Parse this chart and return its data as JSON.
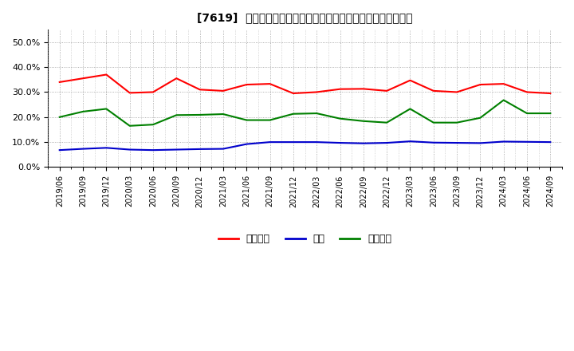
{
  "title": "[7619]  売上債権、在庫、買入債務の総資産に対する比率の推移",
  "x_labels": [
    "2019/06",
    "2019/09",
    "2019/12",
    "2020/03",
    "2020/06",
    "2020/09",
    "2020/12",
    "2021/03",
    "2021/06",
    "2021/09",
    "2021/12",
    "2022/03",
    "2022/06",
    "2022/09",
    "2022/12",
    "2023/03",
    "2023/06",
    "2023/09",
    "2023/12",
    "2024/03",
    "2024/06",
    "2024/09"
  ],
  "urikenken": [
    0.34,
    0.355,
    0.37,
    0.297,
    0.3,
    0.355,
    0.31,
    0.305,
    0.33,
    0.333,
    0.295,
    0.3,
    0.312,
    0.313,
    0.305,
    0.347,
    0.305,
    0.3,
    0.33,
    0.333,
    0.3,
    0.295
  ],
  "zaiko": [
    0.068,
    0.073,
    0.077,
    0.07,
    0.068,
    0.07,
    0.072,
    0.073,
    0.092,
    0.1,
    0.1,
    0.1,
    0.097,
    0.095,
    0.097,
    0.103,
    0.098,
    0.097,
    0.096,
    0.102,
    0.101,
    0.1
  ],
  "kaiire": [
    0.2,
    0.222,
    0.233,
    0.165,
    0.17,
    0.208,
    0.209,
    0.212,
    0.188,
    0.188,
    0.213,
    0.215,
    0.194,
    0.184,
    0.178,
    0.233,
    0.178,
    0.178,
    0.197,
    0.268,
    0.215,
    0.215
  ],
  "legend_labels": [
    "売上債権",
    "在庫",
    "買入債務"
  ],
  "line_colors": [
    "#ff0000",
    "#0000cc",
    "#008000"
  ],
  "background_color": "#ffffff",
  "plot_bg_color": "#ffffff",
  "grid_color": "#aaaaaa",
  "ylim": [
    0.0,
    0.55
  ],
  "yticks": [
    0.0,
    0.1,
    0.2,
    0.3,
    0.4,
    0.5
  ]
}
